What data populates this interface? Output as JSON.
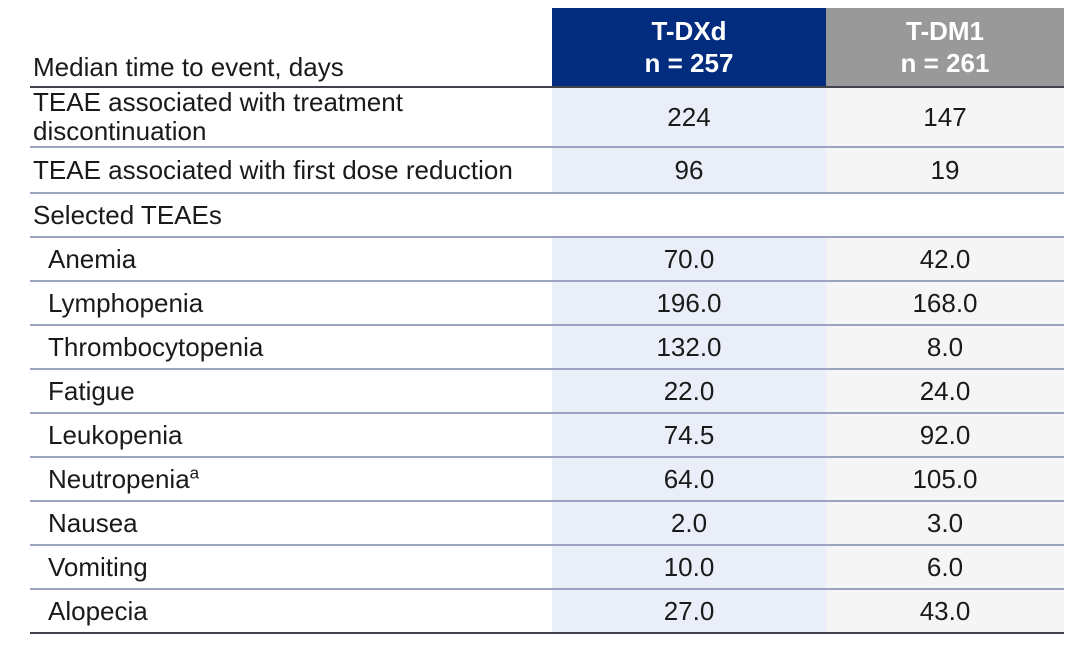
{
  "table": {
    "title_column_header": "Median time to event, days",
    "columns": [
      {
        "id": "tdxd",
        "drug": "T-DXd",
        "n_label": "n = 257"
      },
      {
        "id": "tdm1",
        "drug": "T-DM1",
        "n_label": "n = 261"
      }
    ],
    "rows": [
      {
        "label": "TEAE associated with treatment discontinuation",
        "tdxd": "224",
        "tdm1": "147",
        "indent": false,
        "tall": true,
        "wrap_narrow": true
      },
      {
        "label": "TEAE associated with first dose reduction",
        "tdxd": "96",
        "tdm1": "19",
        "indent": false,
        "med": true
      },
      {
        "label": "Selected TEAEs",
        "section": true,
        "indent": false
      },
      {
        "label": "Anemia",
        "tdxd": "70.0",
        "tdm1": "42.0",
        "indent": true
      },
      {
        "label": "Lymphopenia",
        "tdxd": "196.0",
        "tdm1": "168.0",
        "indent": true
      },
      {
        "label": "Thrombocytopenia",
        "tdxd": "132.0",
        "tdm1": "8.0",
        "indent": true
      },
      {
        "label": "Fatigue",
        "tdxd": "22.0",
        "tdm1": "24.0",
        "indent": true
      },
      {
        "label": "Leukopenia",
        "tdxd": "74.5",
        "tdm1": "92.0",
        "indent": true
      },
      {
        "label": "Neutropenia",
        "sup": "a",
        "tdxd": "64.0",
        "tdm1": "105.0",
        "indent": true
      },
      {
        "label": "Nausea",
        "tdxd": "2.0",
        "tdm1": "3.0",
        "indent": true
      },
      {
        "label": "Vomiting",
        "tdxd": "10.0",
        "tdm1": "6.0",
        "indent": true
      },
      {
        "label": "Alopecia",
        "tdxd": "27.0",
        "tdm1": "43.0",
        "indent": true
      }
    ]
  },
  "chart_data": {
    "type": "table",
    "title": "Median time to event, days",
    "columns": [
      "T-DXd n = 257",
      "T-DM1 n = 261"
    ],
    "categories": [
      "TEAE associated with treatment discontinuation",
      "TEAE associated with first dose reduction",
      "Anemia",
      "Lymphopenia",
      "Thrombocytopenia",
      "Fatigue",
      "Leukopenia",
      "Neutropenia",
      "Nausea",
      "Vomiting",
      "Alopecia"
    ],
    "series": [
      {
        "name": "T-DXd",
        "n": 257,
        "values": [
          224,
          96,
          70.0,
          196.0,
          132.0,
          22.0,
          74.5,
          64.0,
          2.0,
          10.0,
          27.0
        ]
      },
      {
        "name": "T-DM1",
        "n": 261,
        "values": [
          147,
          19,
          42.0,
          168.0,
          8.0,
          24.0,
          92.0,
          105.0,
          3.0,
          6.0,
          43.0
        ]
      }
    ]
  },
  "colors": {
    "tdxd_header": "#022c7e",
    "tdm1_header": "#999999",
    "tdxd_column": "#e9eef8",
    "tdm1_column": "#f5f5f5",
    "line_light": "#9ba3c1",
    "line_dark": "#3e4249",
    "text": "#1a1a1a"
  }
}
